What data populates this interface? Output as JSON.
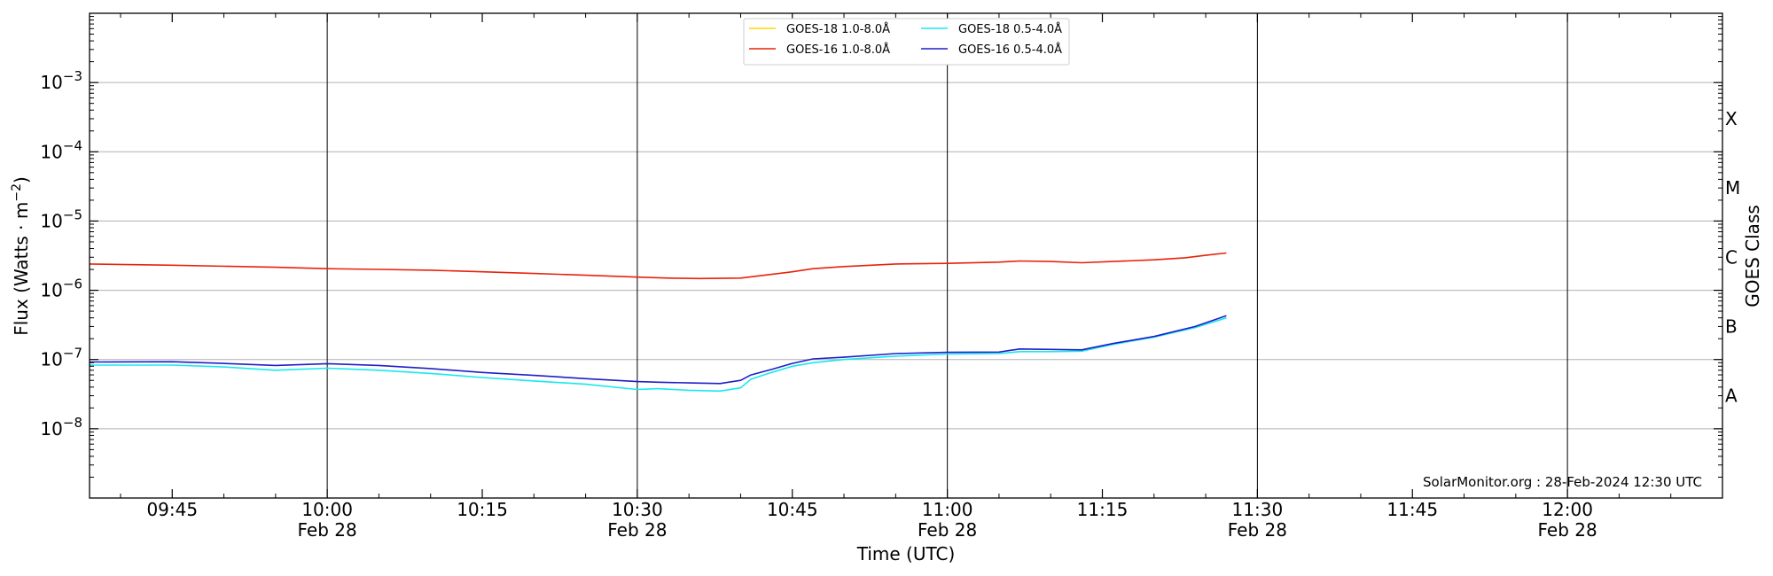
{
  "chart_data": {
    "type": "line",
    "xlabel": "Time (UTC)",
    "ylabel": "Flux (Watts · m",
    "ylabel_exp": "−2",
    "ylabel_close": ")",
    "right_label": "GOES Class",
    "credit": "SolarMonitor.org : 28-Feb-2024 12:30 UTC",
    "x_range": [
      "09:37",
      "12:15"
    ],
    "y_scale": "log",
    "y_range": [
      1e-09,
      0.01
    ],
    "y_ticks": [
      {
        "value": 1e-08,
        "base": "10",
        "exp": "−8"
      },
      {
        "value": 1e-07,
        "base": "10",
        "exp": "−7"
      },
      {
        "value": 1e-06,
        "base": "10",
        "exp": "−6"
      },
      {
        "value": 1e-05,
        "base": "10",
        "exp": "−5"
      },
      {
        "value": 0.0001,
        "base": "10",
        "exp": "−4"
      },
      {
        "value": 0.001,
        "base": "10",
        "exp": "−3"
      }
    ],
    "x_ticks": [
      {
        "time": "09:45",
        "label": "09:45",
        "date": ""
      },
      {
        "time": "10:00",
        "label": "10:00",
        "date": "Feb 28"
      },
      {
        "time": "10:15",
        "label": "10:15",
        "date": ""
      },
      {
        "time": "10:30",
        "label": "10:30",
        "date": "Feb 28"
      },
      {
        "time": "10:45",
        "label": "10:45",
        "date": ""
      },
      {
        "time": "11:00",
        "label": "11:00",
        "date": "Feb 28"
      },
      {
        "time": "11:15",
        "label": "11:15",
        "date": ""
      },
      {
        "time": "11:30",
        "label": "11:30",
        "date": "Feb 28"
      },
      {
        "time": "11:45",
        "label": "11:45",
        "date": ""
      },
      {
        "time": "12:00",
        "label": "12:00",
        "date": "Feb 28"
      }
    ],
    "goes_classes": [
      {
        "label": "A",
        "flux": 3e-08
      },
      {
        "label": "B",
        "flux": 3e-07
      },
      {
        "label": "C",
        "flux": 3e-06
      },
      {
        "label": "M",
        "flux": 3e-05
      },
      {
        "label": "X",
        "flux": 0.0003
      }
    ],
    "grid": "horizontal at decades; vertical at Feb 28 date ticks",
    "legend_position": "top-center",
    "series": [
      {
        "name": "GOES-18 1.0-8.0Å",
        "color": "#ffd700",
        "points": []
      },
      {
        "name": "GOES-16 1.0-8.0Å",
        "color": "#e8220c",
        "points": [
          [
            "09:37",
            2.4e-06
          ],
          [
            "09:45",
            2.3e-06
          ],
          [
            "09:55",
            2.15e-06
          ],
          [
            "10:00",
            2.05e-06
          ],
          [
            "10:05",
            2e-06
          ],
          [
            "10:10",
            1.95e-06
          ],
          [
            "10:15",
            1.85e-06
          ],
          [
            "10:20",
            1.75e-06
          ],
          [
            "10:25",
            1.65e-06
          ],
          [
            "10:30",
            1.55e-06
          ],
          [
            "10:33",
            1.5e-06
          ],
          [
            "10:36",
            1.48e-06
          ],
          [
            "10:40",
            1.5e-06
          ],
          [
            "10:43",
            1.7e-06
          ],
          [
            "10:45",
            1.85e-06
          ],
          [
            "10:47",
            2.05e-06
          ],
          [
            "10:50",
            2.2e-06
          ],
          [
            "10:55",
            2.4e-06
          ],
          [
            "11:00",
            2.45e-06
          ],
          [
            "11:05",
            2.55e-06
          ],
          [
            "11:07",
            2.65e-06
          ],
          [
            "11:10",
            2.6e-06
          ],
          [
            "11:13",
            2.5e-06
          ],
          [
            "11:16",
            2.6e-06
          ],
          [
            "11:20",
            2.75e-06
          ],
          [
            "11:23",
            2.95e-06
          ],
          [
            "11:25",
            3.2e-06
          ],
          [
            "11:27",
            3.45e-06
          ]
        ]
      },
      {
        "name": "GOES-18 0.5-4.0Å",
        "color": "#18e8f0",
        "points": [
          [
            "09:37",
            8.3e-08
          ],
          [
            "09:45",
            8.3e-08
          ],
          [
            "09:50",
            7.8e-08
          ],
          [
            "09:55",
            7e-08
          ],
          [
            "10:00",
            7.5e-08
          ],
          [
            "10:05",
            7e-08
          ],
          [
            "10:10",
            6.3e-08
          ],
          [
            "10:15",
            5.5e-08
          ],
          [
            "10:20",
            4.9e-08
          ],
          [
            "10:25",
            4.4e-08
          ],
          [
            "10:30",
            3.7e-08
          ],
          [
            "10:32",
            3.8e-08
          ],
          [
            "10:35",
            3.6e-08
          ],
          [
            "10:38",
            3.5e-08
          ],
          [
            "10:40",
            3.9e-08
          ],
          [
            "10:41",
            5.2e-08
          ],
          [
            "10:43",
            6.5e-08
          ],
          [
            "10:45",
            8e-08
          ],
          [
            "10:47",
            9e-08
          ],
          [
            "10:50",
            1e-07
          ],
          [
            "10:55",
            1.12e-07
          ],
          [
            "11:00",
            1.2e-07
          ],
          [
            "11:05",
            1.22e-07
          ],
          [
            "11:07",
            1.3e-07
          ],
          [
            "11:10",
            1.3e-07
          ],
          [
            "11:13",
            1.32e-07
          ],
          [
            "11:16",
            1.65e-07
          ],
          [
            "11:20",
            2.1e-07
          ],
          [
            "11:24",
            2.9e-07
          ],
          [
            "11:27",
            4e-07
          ]
        ]
      },
      {
        "name": "GOES-16 0.5-4.0Å",
        "color": "#1e1ec8",
        "points": [
          [
            "09:37",
            9.2e-08
          ],
          [
            "09:45",
            9.3e-08
          ],
          [
            "09:50",
            8.8e-08
          ],
          [
            "09:55",
            8.2e-08
          ],
          [
            "10:00",
            8.7e-08
          ],
          [
            "10:05",
            8.2e-08
          ],
          [
            "10:10",
            7.4e-08
          ],
          [
            "10:15",
            6.5e-08
          ],
          [
            "10:20",
            5.9e-08
          ],
          [
            "10:25",
            5.3e-08
          ],
          [
            "10:30",
            4.8e-08
          ],
          [
            "10:32",
            4.7e-08
          ],
          [
            "10:35",
            4.6e-08
          ],
          [
            "10:38",
            4.5e-08
          ],
          [
            "10:40",
            5e-08
          ],
          [
            "10:41",
            6e-08
          ],
          [
            "10:43",
            7.2e-08
          ],
          [
            "10:45",
            8.8e-08
          ],
          [
            "10:47",
            1.02e-07
          ],
          [
            "10:50",
            1.08e-07
          ],
          [
            "10:55",
            1.22e-07
          ],
          [
            "11:00",
            1.27e-07
          ],
          [
            "11:05",
            1.28e-07
          ],
          [
            "11:07",
            1.42e-07
          ],
          [
            "11:10",
            1.4e-07
          ],
          [
            "11:13",
            1.38e-07
          ],
          [
            "11:16",
            1.7e-07
          ],
          [
            "11:20",
            2.15e-07
          ],
          [
            "11:24",
            3e-07
          ],
          [
            "11:27",
            4.3e-07
          ]
        ]
      }
    ]
  }
}
